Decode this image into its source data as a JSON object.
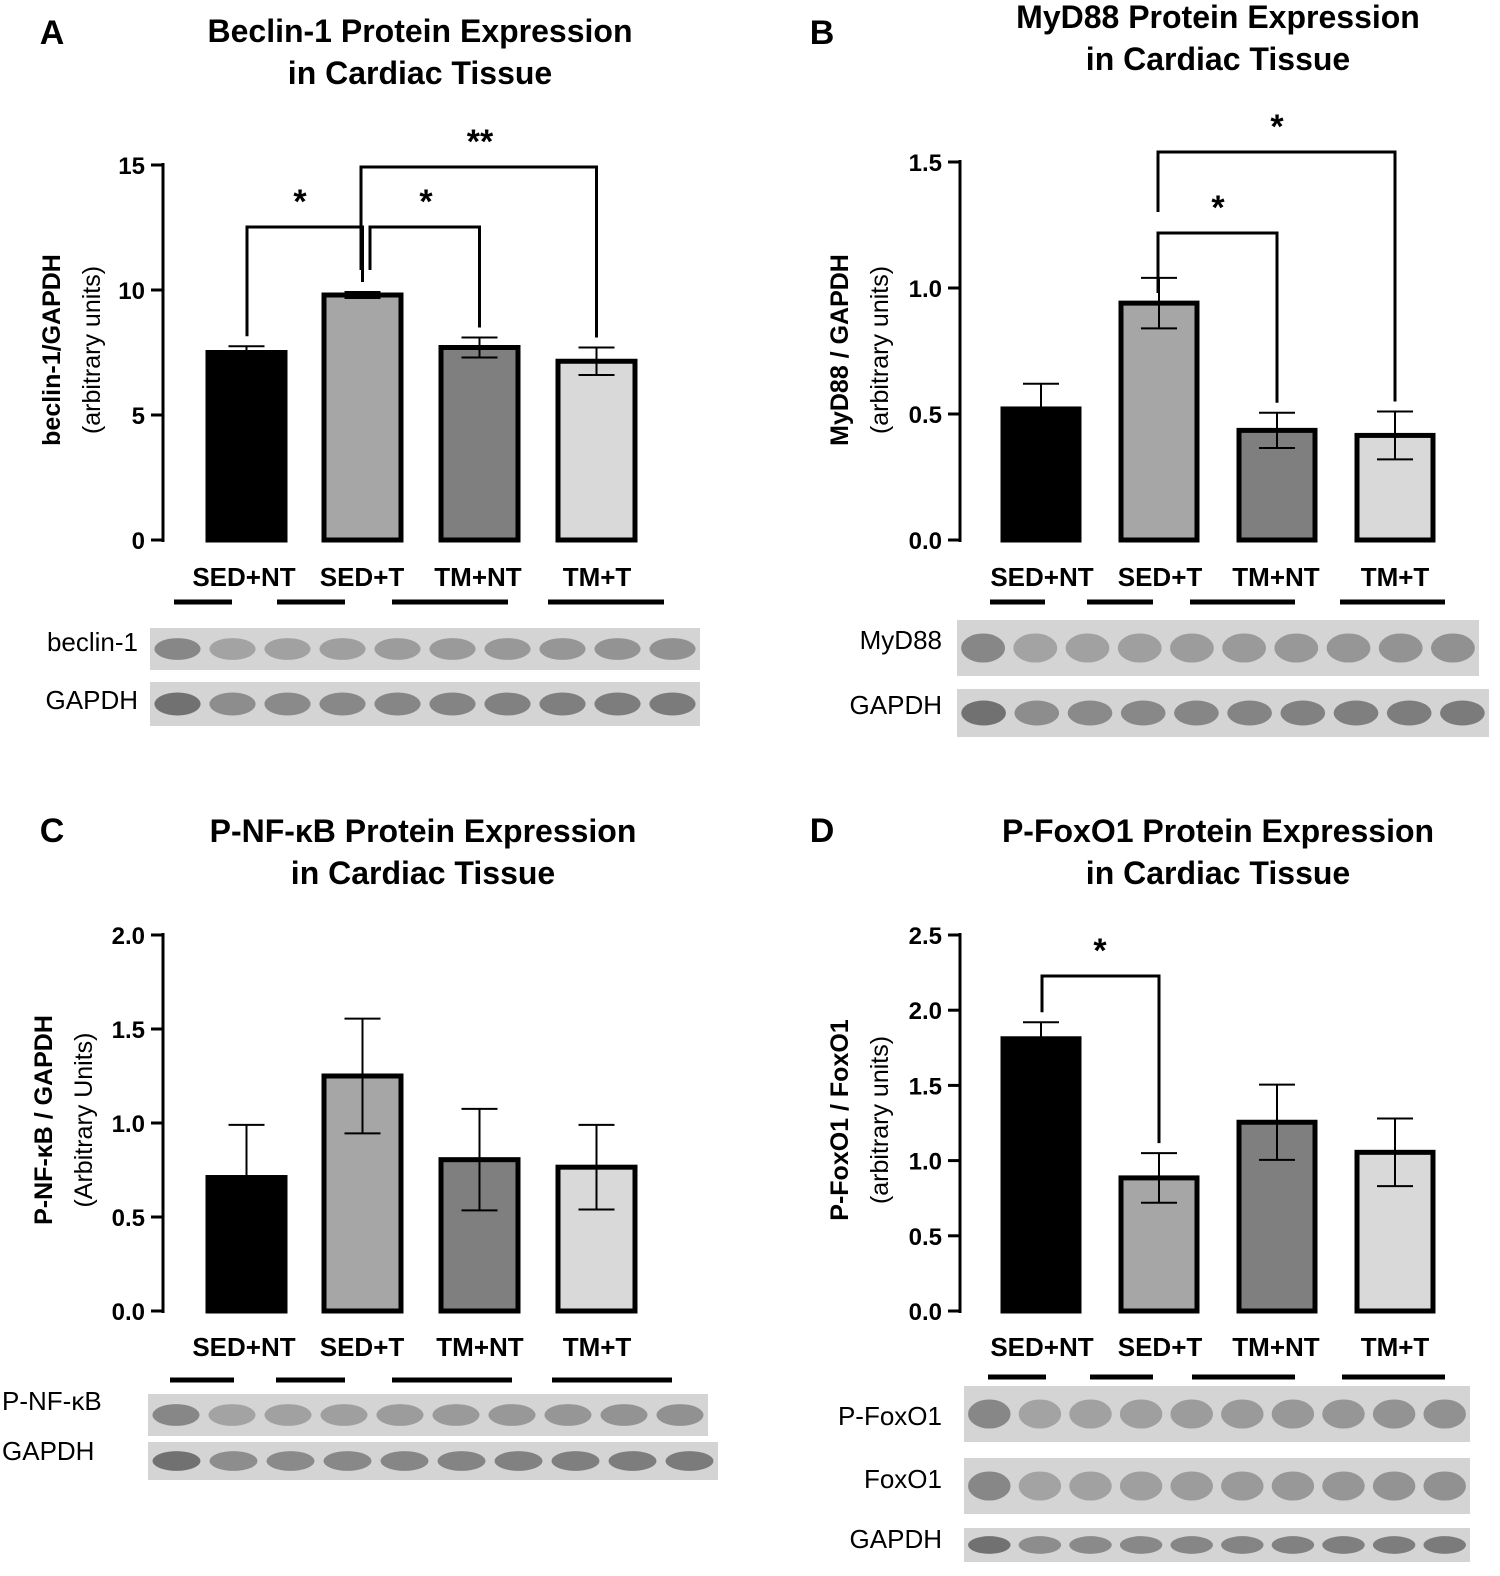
{
  "colors": {
    "sed_nt": "#000000",
    "sed_t": "#a6a6a6",
    "tm_nt": "#7f7f7f",
    "tm_t": "#d9d9d9",
    "axis": "#000000"
  },
  "chart_data": [
    {
      "type": "bar",
      "panel": "A",
      "title_line1": "Beclin-1 Protein Expression",
      "title_line2": "in Cardiac Tissue",
      "ylabel": "beclin-1/GAPDH",
      "ylabel_sub": "(arbitrary units)",
      "ylim": [
        0,
        15
      ],
      "yticks": [
        0,
        5,
        10,
        15
      ],
      "ytick_labels": [
        "0",
        "5",
        "10",
        "15"
      ],
      "categories": [
        "SED+NT",
        "SED+T",
        "TM+NT",
        "TM+T"
      ],
      "values": [
        7.5,
        9.8,
        7.7,
        7.15
      ],
      "errors": [
        0.25,
        0.12,
        0.4,
        0.55
      ],
      "significance": [
        {
          "from": 0,
          "to": 1,
          "label": "*"
        },
        {
          "from": 1,
          "to": 2,
          "label": "*"
        },
        {
          "from": 1,
          "to": 3,
          "label": "**"
        }
      ],
      "blot_labels": [
        "beclin-1",
        "GAPDH"
      ]
    },
    {
      "type": "bar",
      "panel": "B",
      "title_line1": "MyD88 Protein Expression",
      "title_line2": "in Cardiac Tissue",
      "ylabel": "MyD88 / GAPDH",
      "ylabel_sub": "(arbitrary units)",
      "ylim": [
        0,
        1.5
      ],
      "yticks": [
        0,
        0.5,
        1.0,
        1.5
      ],
      "ytick_labels": [
        "0.0",
        "0.5",
        "1.0",
        "1.5"
      ],
      "categories": [
        "SED+NT",
        "SED+T",
        "TM+NT",
        "TM+T"
      ],
      "values": [
        0.52,
        0.94,
        0.435,
        0.415
      ],
      "errors": [
        0.1,
        0.1,
        0.07,
        0.095
      ],
      "significance": [
        {
          "from": 1,
          "to": 2,
          "label": "*"
        },
        {
          "from": 1,
          "to": 3,
          "label": "*"
        }
      ],
      "blot_labels": [
        "MyD88",
        "GAPDH"
      ]
    },
    {
      "type": "bar",
      "panel": "C",
      "title_line1": "P-NF-κB Protein Expression",
      "title_line2": "in Cardiac Tissue",
      "ylabel": "P-NF-κB / GAPDH",
      "ylabel_sub": "(Arbitrary Units)",
      "ylim": [
        0,
        2.0
      ],
      "yticks": [
        0,
        0.5,
        1.0,
        1.5,
        2.0
      ],
      "ytick_labels": [
        "0.0",
        "0.5",
        "1.0",
        "1.5",
        "2.0"
      ],
      "categories": [
        "SED+NT",
        "SED+T",
        "TM+NT",
        "TM+T"
      ],
      "values": [
        0.71,
        1.25,
        0.805,
        0.765
      ],
      "errors": [
        0.28,
        0.305,
        0.27,
        0.225
      ],
      "significance": [],
      "blot_labels": [
        "P-NF-κB",
        "GAPDH"
      ]
    },
    {
      "type": "bar",
      "panel": "D",
      "title_line1": "P-FoxO1 Protein Expression",
      "title_line2": "in Cardiac Tissue",
      "ylabel": "P-FoxO1 / FoxO1",
      "ylabel_sub": "(arbitrary units)",
      "ylim": [
        0,
        2.5
      ],
      "yticks": [
        0,
        0.5,
        1.0,
        1.5,
        2.0,
        2.5
      ],
      "ytick_labels": [
        "0.0",
        "0.5",
        "1.0",
        "1.5",
        "2.0",
        "2.5"
      ],
      "categories": [
        "SED+NT",
        "SED+T",
        "TM+NT",
        "TM+T"
      ],
      "values": [
        1.81,
        0.885,
        1.255,
        1.055
      ],
      "errors": [
        0.11,
        0.165,
        0.25,
        0.225
      ],
      "significance": [
        {
          "from": 0,
          "to": 1,
          "label": "*"
        }
      ],
      "blot_labels": [
        "P-FoxO1",
        "FoxO1",
        "GAPDH"
      ]
    }
  ]
}
